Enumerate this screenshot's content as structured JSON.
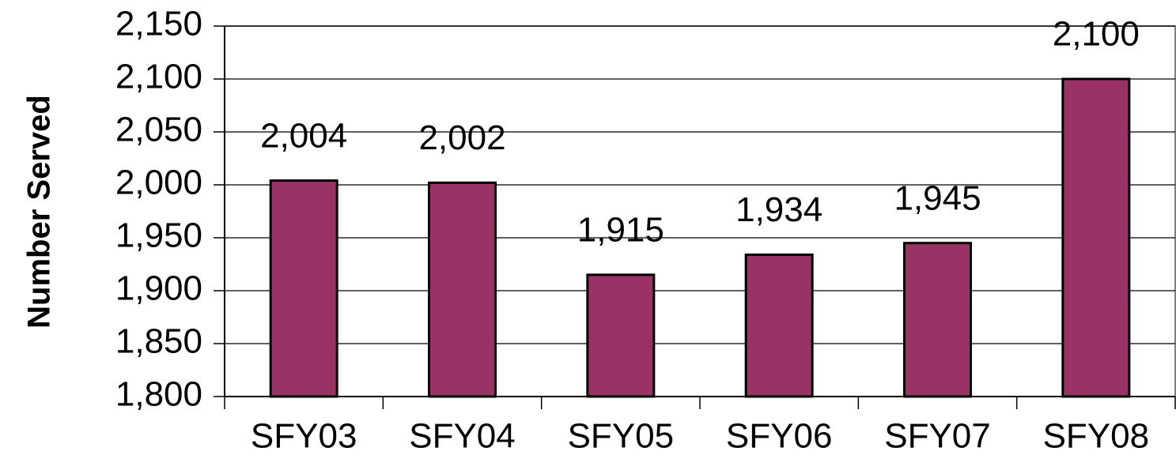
{
  "chart_data": {
    "type": "bar",
    "y_axis_label": "Number Served",
    "categories": [
      "SFY03",
      "SFY04",
      "SFY05",
      "SFY06",
      "SFY07",
      "SFY08"
    ],
    "values": [
      2004,
      2002,
      1915,
      1934,
      1945,
      2100
    ],
    "value_labels": [
      "2,004",
      "2,002",
      "1,915",
      "1,934",
      "1,945",
      "2,100"
    ],
    "color": "#993366",
    "ylim": [
      1800,
      2150
    ],
    "yticks": [
      {
        "value": 1800,
        "label": "1,800"
      },
      {
        "value": 1850,
        "label": "1,850"
      },
      {
        "value": 1900,
        "label": "1,900"
      },
      {
        "value": 1950,
        "label": "1,950"
      },
      {
        "value": 2000,
        "label": "2,000"
      },
      {
        "value": 2050,
        "label": "2,050"
      },
      {
        "value": 2100,
        "label": "2,100"
      },
      {
        "value": 2150,
        "label": "2,150"
      }
    ],
    "grid": true
  }
}
